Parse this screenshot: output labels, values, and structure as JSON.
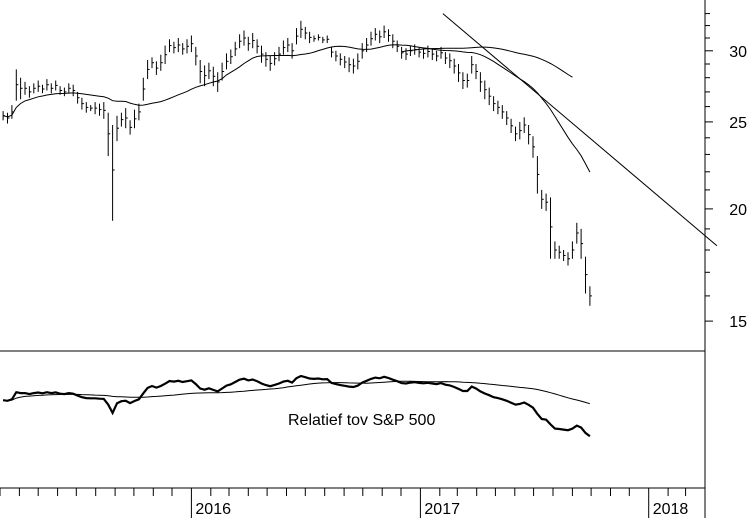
{
  "chart_data": [
    {
      "type": "ohlc",
      "scale": "log",
      "ylim": [
        14,
        34
      ],
      "y_ticks": [
        "15",
        "20",
        "25",
        "30"
      ],
      "x_ticks": [
        "2016",
        "2017",
        "2018"
      ],
      "xlim": [
        "2015-03",
        "2018-04"
      ],
      "grid": false,
      "series": [
        {
          "kind": "weekly-price-bars",
          "points": [
            [
              "2015-03-06",
              25.7,
              25.1
            ],
            [
              "2015-03-13",
              25.6,
              24.9
            ],
            [
              "2015-03-20",
              26.1,
              25.2
            ],
            [
              "2015-03-27",
              28.6,
              26.4
            ],
            [
              "2015-04-03",
              28.0,
              26.5
            ],
            [
              "2015-04-10",
              27.7,
              26.8
            ],
            [
              "2015-04-17",
              27.4,
              26.6
            ],
            [
              "2015-04-24",
              27.6,
              26.9
            ],
            [
              "2015-05-01",
              27.8,
              27.0
            ],
            [
              "2015-05-08",
              27.5,
              26.9
            ],
            [
              "2015-05-15",
              27.9,
              27.1
            ],
            [
              "2015-05-22",
              27.6,
              26.9
            ],
            [
              "2015-05-29",
              27.8,
              27.1
            ],
            [
              "2015-06-05",
              27.4,
              26.8
            ],
            [
              "2015-06-12",
              27.3,
              26.7
            ],
            [
              "2015-06-19",
              27.6,
              26.9
            ],
            [
              "2015-06-26",
              27.5,
              26.7
            ],
            [
              "2015-07-03",
              27.0,
              26.2
            ],
            [
              "2015-07-10",
              26.6,
              25.8
            ],
            [
              "2015-07-17",
              26.3,
              25.6
            ],
            [
              "2015-07-24",
              26.1,
              25.7
            ],
            [
              "2015-07-31",
              26.3,
              25.5
            ],
            [
              "2015-08-07",
              26.2,
              25.4
            ],
            [
              "2015-08-14",
              26.3,
              25.2
            ],
            [
              "2015-08-21",
              25.6,
              22.9
            ],
            [
              "2015-08-28",
              24.8,
              19.4
            ],
            [
              "2015-09-04",
              25.4,
              23.8
            ],
            [
              "2015-09-11",
              25.6,
              24.7
            ],
            [
              "2015-09-18",
              25.9,
              24.6
            ],
            [
              "2015-09-25",
              25.1,
              24.2
            ],
            [
              "2015-10-02",
              25.8,
              24.6
            ],
            [
              "2015-10-09",
              26.2,
              25.1
            ],
            [
              "2015-10-16",
              28.0,
              26.4
            ],
            [
              "2015-10-23",
              29.3,
              27.9
            ],
            [
              "2015-10-30",
              29.5,
              28.7
            ],
            [
              "2015-11-06",
              29.2,
              28.2
            ],
            [
              "2015-11-13",
              29.7,
              28.5
            ],
            [
              "2015-11-20",
              30.4,
              29.0
            ],
            [
              "2015-11-27",
              30.9,
              29.9
            ],
            [
              "2015-12-04",
              30.7,
              29.8
            ],
            [
              "2015-12-11",
              31.0,
              29.9
            ],
            [
              "2015-12-18",
              30.6,
              29.7
            ],
            [
              "2015-12-25",
              30.9,
              29.8
            ],
            [
              "2016-01-01",
              31.2,
              29.9
            ],
            [
              "2016-01-08",
              30.3,
              28.9
            ],
            [
              "2016-01-15",
              29.3,
              27.6
            ],
            [
              "2016-01-22",
              28.9,
              27.4
            ],
            [
              "2016-01-29",
              29.1,
              27.9
            ],
            [
              "2016-02-05",
              28.8,
              27.4
            ],
            [
              "2016-02-12",
              28.4,
              27.0
            ],
            [
              "2016-02-19",
              29.1,
              27.8
            ],
            [
              "2016-02-26",
              29.8,
              28.6
            ],
            [
              "2016-03-04",
              30.1,
              29.0
            ],
            [
              "2016-03-11",
              30.7,
              29.6
            ],
            [
              "2016-03-18",
              31.3,
              30.2
            ],
            [
              "2016-03-25",
              31.6,
              30.4
            ],
            [
              "2016-04-01",
              31.1,
              30.0
            ],
            [
              "2016-04-08",
              31.4,
              30.2
            ],
            [
              "2016-04-15",
              30.9,
              29.8
            ],
            [
              "2016-04-22",
              30.4,
              29.1
            ],
            [
              "2016-04-29",
              29.9,
              28.8
            ],
            [
              "2016-05-06",
              29.6,
              28.5
            ],
            [
              "2016-05-13",
              29.9,
              28.9
            ],
            [
              "2016-05-20",
              30.3,
              29.2
            ],
            [
              "2016-05-27",
              30.8,
              29.7
            ],
            [
              "2016-06-03",
              31.0,
              29.9
            ],
            [
              "2016-06-10",
              30.6,
              29.4
            ],
            [
              "2016-06-17",
              31.8,
              30.5
            ],
            [
              "2016-06-24",
              32.4,
              31.0
            ],
            [
              "2016-07-01",
              31.9,
              30.9
            ],
            [
              "2016-07-08",
              31.5,
              30.6
            ],
            [
              "2016-07-15",
              31.2,
              30.7
            ],
            [
              "2016-07-22",
              31.3,
              30.8
            ],
            [
              "2016-07-29",
              31.1,
              30.6
            ],
            [
              "2016-08-05",
              31.2,
              30.6
            ],
            [
              "2016-08-12",
              30.3,
              29.5
            ],
            [
              "2016-08-19",
              30.0,
              29.2
            ],
            [
              "2016-08-26",
              29.8,
              28.9
            ],
            [
              "2016-09-02",
              29.6,
              28.7
            ],
            [
              "2016-09-09",
              29.5,
              28.4
            ],
            [
              "2016-09-16",
              29.4,
              28.3
            ],
            [
              "2016-09-23",
              29.8,
              28.6
            ],
            [
              "2016-09-30",
              30.6,
              29.4
            ],
            [
              "2016-10-07",
              31.0,
              29.9
            ],
            [
              "2016-10-14",
              31.5,
              30.4
            ],
            [
              "2016-10-21",
              31.8,
              30.8
            ],
            [
              "2016-10-28",
              31.6,
              30.6
            ],
            [
              "2016-11-04",
              32.0,
              31.0
            ],
            [
              "2016-11-11",
              31.7,
              30.7
            ],
            [
              "2016-11-18",
              31.3,
              30.2
            ],
            [
              "2016-11-25",
              30.8,
              29.9
            ],
            [
              "2016-12-02",
              30.3,
              29.4
            ],
            [
              "2016-12-09",
              30.2,
              29.3
            ],
            [
              "2016-12-16",
              30.4,
              29.6
            ],
            [
              "2016-12-23",
              30.5,
              29.7
            ],
            [
              "2016-12-30",
              30.3,
              29.5
            ],
            [
              "2017-01-06",
              30.2,
              29.4
            ],
            [
              "2017-01-13",
              30.4,
              29.5
            ],
            [
              "2017-01-20",
              30.2,
              29.3
            ],
            [
              "2017-01-27",
              30.0,
              29.2
            ],
            [
              "2017-02-03",
              30.3,
              29.4
            ],
            [
              "2017-02-10",
              29.9,
              29.0
            ],
            [
              "2017-02-17",
              29.8,
              28.7
            ],
            [
              "2017-02-24",
              29.4,
              28.3
            ],
            [
              "2017-03-03",
              29.0,
              27.7
            ],
            [
              "2017-03-10",
              28.4,
              27.2
            ],
            [
              "2017-03-17",
              28.3,
              27.3
            ],
            [
              "2017-03-24",
              29.6,
              28.3
            ],
            [
              "2017-03-31",
              29.0,
              27.9
            ],
            [
              "2017-04-07",
              28.4,
              27.0
            ],
            [
              "2017-04-14",
              27.8,
              26.5
            ],
            [
              "2017-04-21",
              27.3,
              26.1
            ],
            [
              "2017-04-28",
              26.7,
              25.7
            ],
            [
              "2017-05-05",
              26.4,
              25.5
            ],
            [
              "2017-05-12",
              26.1,
              25.2
            ],
            [
              "2017-05-19",
              25.7,
              24.8
            ],
            [
              "2017-05-26",
              25.2,
              24.3
            ],
            [
              "2017-06-02",
              24.7,
              23.8
            ],
            [
              "2017-06-09",
              25.0,
              23.9
            ],
            [
              "2017-06-16",
              25.3,
              24.3
            ],
            [
              "2017-06-23",
              24.8,
              23.6
            ],
            [
              "2017-06-30",
              24.1,
              22.8
            ],
            [
              "2017-07-07",
              22.9,
              20.8
            ],
            [
              "2017-07-14",
              21.0,
              20.0
            ],
            [
              "2017-07-21",
              20.8,
              19.9
            ],
            [
              "2017-07-28",
              20.6,
              17.6
            ],
            [
              "2017-08-04",
              18.4,
              17.6
            ],
            [
              "2017-08-11",
              18.2,
              17.6
            ],
            [
              "2017-08-18",
              18.0,
              17.5
            ],
            [
              "2017-08-25",
              17.9,
              17.3
            ],
            [
              "2017-09-01",
              18.4,
              17.6
            ],
            [
              "2017-09-08",
              19.3,
              18.3
            ],
            [
              "2017-09-15",
              19.0,
              17.6
            ],
            [
              "2017-09-22",
              17.7,
              16.1
            ],
            [
              "2017-09-29",
              16.4,
              15.6
            ]
          ]
        },
        {
          "kind": "moving-average"
        },
        {
          "kind": "moving-average"
        },
        {
          "kind": "trendline",
          "from": [
            "2017-02-06",
            33.0
          ],
          "to": [
            "2018-04-20",
            18.2
          ]
        }
      ]
    },
    {
      "type": "line",
      "annotation": "Relatief tov S&P 500",
      "ylim": [
        0,
        100
      ],
      "series": [
        {
          "kind": "relative-strength"
        },
        {
          "kind": "moving-average"
        }
      ]
    }
  ]
}
